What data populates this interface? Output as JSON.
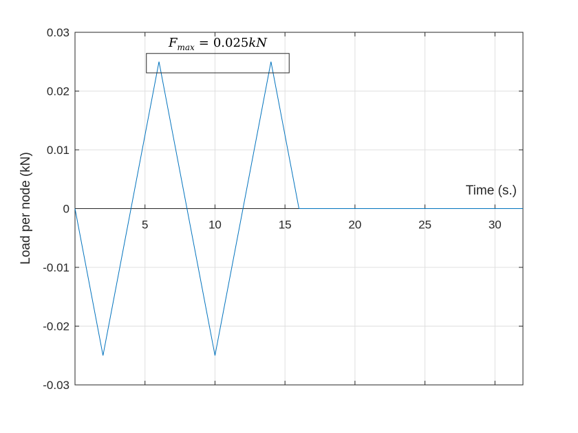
{
  "chart_data": {
    "type": "line",
    "xlabel": "Time (s.)",
    "ylabel": "Load per node (kN)",
    "xlim": [
      0,
      32
    ],
    "ylim": [
      -0.03,
      0.03
    ],
    "x_ticks": [
      5,
      10,
      15,
      20,
      25,
      30
    ],
    "x_tick_labels": [
      "5",
      "10",
      "15",
      "20",
      "25",
      "30"
    ],
    "y_ticks": [
      -0.03,
      -0.02,
      -0.01,
      0,
      0.01,
      0.02,
      0.03
    ],
    "y_tick_labels": [
      "-0.03",
      "-0.02",
      "-0.01",
      "0",
      "0.01",
      "0.02",
      "0.03"
    ],
    "grid": true,
    "series": [
      {
        "color": "#0072BD",
        "x": [
          0,
          2,
          6,
          10,
          14,
          16,
          32
        ],
        "y": [
          0,
          -0.025,
          0.025,
          -0.025,
          0.025,
          0,
          0
        ]
      }
    ],
    "annotation": {
      "symbol": "F",
      "subscript": "max",
      "operator": "=",
      "value": "0.025",
      "unit": "kN",
      "box_x_range": [
        5.1,
        15.3
      ],
      "box_y_range": [
        0.0231,
        0.0264
      ]
    }
  }
}
